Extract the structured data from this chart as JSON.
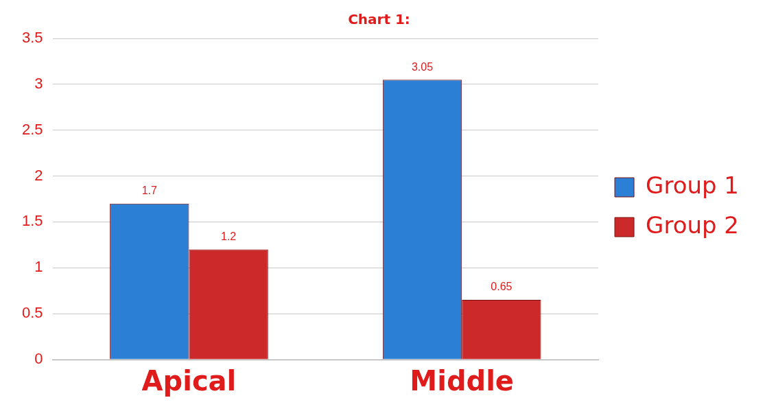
{
  "chart_data": {
    "type": "bar",
    "title": "Chart 1:",
    "categories": [
      "Apical",
      "Middle"
    ],
    "series": [
      {
        "name": "Group 1",
        "color": "#2b7fd4",
        "values": [
          1.7,
          3.05
        ]
      },
      {
        "name": "Group 2",
        "color": "#cc2a2a",
        "values": [
          1.2,
          0.65
        ]
      }
    ],
    "ylim": [
      0,
      3.5
    ],
    "yticks": [
      0,
      0.5,
      1,
      1.5,
      2,
      2.5,
      3,
      3.5
    ],
    "grid": "y",
    "legend": "right",
    "data_labels": true
  }
}
